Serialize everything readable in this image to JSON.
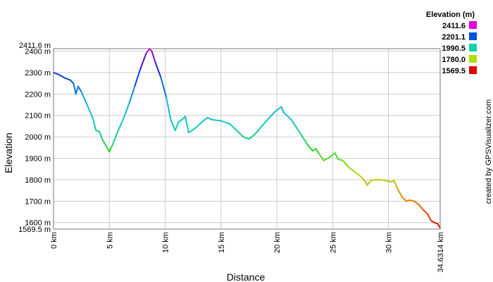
{
  "chart_data": {
    "type": "line",
    "xlabel": "Distance",
    "ylabel": "Elevation",
    "xlim": [
      0,
      34.6314
    ],
    "ylim": [
      1569.5,
      2411.6
    ],
    "x_ticks": [
      {
        "value": 0,
        "label": "0 km"
      },
      {
        "value": 5,
        "label": "5 km"
      },
      {
        "value": 10,
        "label": "10 km"
      },
      {
        "value": 15,
        "label": "15 km"
      },
      {
        "value": 20,
        "label": "20 km"
      },
      {
        "value": 25,
        "label": "25 km"
      },
      {
        "value": 30,
        "label": "30 km"
      },
      {
        "value": 34.6314,
        "label": "34.6314 km"
      }
    ],
    "y_ticks": [
      {
        "value": 2411.6,
        "label": "2411.6 m"
      },
      {
        "value": 2400,
        "label": "2400 m"
      },
      {
        "value": 2300,
        "label": "2300 m"
      },
      {
        "value": 2200,
        "label": "2200 m"
      },
      {
        "value": 2100,
        "label": "2100 m"
      },
      {
        "value": 2000,
        "label": "2000 m"
      },
      {
        "value": 1900,
        "label": "1900 m"
      },
      {
        "value": 1800,
        "label": "1800 m"
      },
      {
        "value": 1700,
        "label": "1700 m"
      },
      {
        "value": 1600,
        "label": "1600 m"
      },
      {
        "value": 1569.5,
        "label": "1569.5 m"
      }
    ],
    "grid": true,
    "legend": {
      "title": "Elevation (m)",
      "placement": "top-right",
      "entries": [
        {
          "label": "2411.6",
          "color": "#e000e0"
        },
        {
          "label": "2201.1",
          "color": "#0050e0"
        },
        {
          "label": "1990.5",
          "color": "#10d0b0"
        },
        {
          "label": "1780.0",
          "color": "#b0e000"
        },
        {
          "label": "1569.5",
          "color": "#e00000"
        }
      ]
    },
    "credit": "created by GPSVisualizer.com",
    "series": [
      {
        "x": [
          0,
          0.5,
          1,
          1.5,
          1.8,
          2.0,
          2.2,
          2.5,
          3.0,
          3.5,
          3.8,
          4.1,
          4.4,
          4.8,
          5.0,
          5.3,
          5.8,
          6.3,
          6.8,
          7.3,
          7.8,
          8.3,
          8.6,
          8.8,
          9.1,
          9.6,
          10.1,
          10.5,
          10.9,
          11.2,
          11.5,
          11.8,
          12.1,
          12.4,
          12.8,
          13.3,
          13.8,
          14.2,
          15.0,
          15.8,
          16.5,
          17.0,
          17.5,
          18.0,
          18.5,
          19.0,
          19.5,
          20.0,
          20.4,
          20.6,
          20.9,
          21.3,
          21.8,
          22.3,
          22.8,
          23.2,
          23.5,
          23.8,
          24.2,
          24.6,
          25.0,
          25.2,
          25.5,
          25.9,
          26.4,
          26.9,
          27.4,
          27.8,
          28.1,
          28.4,
          28.8,
          29.3,
          29.8,
          30.2,
          30.5,
          30.8,
          31.2,
          31.6,
          31.9,
          32.3,
          32.7,
          33.1,
          33.5,
          33.8,
          34.1,
          34.4,
          34.6314
        ],
        "y": [
          2300,
          2290,
          2275,
          2265,
          2248,
          2200,
          2235,
          2210,
          2150,
          2090,
          2030,
          2025,
          1985,
          1950,
          1930,
          1965,
          2030,
          2090,
          2160,
          2240,
          2320,
          2390,
          2411,
          2400,
          2350,
          2280,
          2185,
          2080,
          2030,
          2070,
          2080,
          2095,
          2020,
          2030,
          2045,
          2070,
          2090,
          2080,
          2075,
          2060,
          2025,
          2000,
          1990,
          2010,
          2040,
          2070,
          2100,
          2125,
          2140,
          2115,
          2100,
          2080,
          2040,
          2000,
          1960,
          1935,
          1945,
          1920,
          1890,
          1900,
          1915,
          1925,
          1895,
          1890,
          1860,
          1840,
          1820,
          1800,
          1775,
          1795,
          1800,
          1800,
          1795,
          1790,
          1795,
          1760,
          1720,
          1700,
          1705,
          1700,
          1685,
          1660,
          1640,
          1610,
          1600,
          1595,
          1575
        ]
      }
    ]
  }
}
